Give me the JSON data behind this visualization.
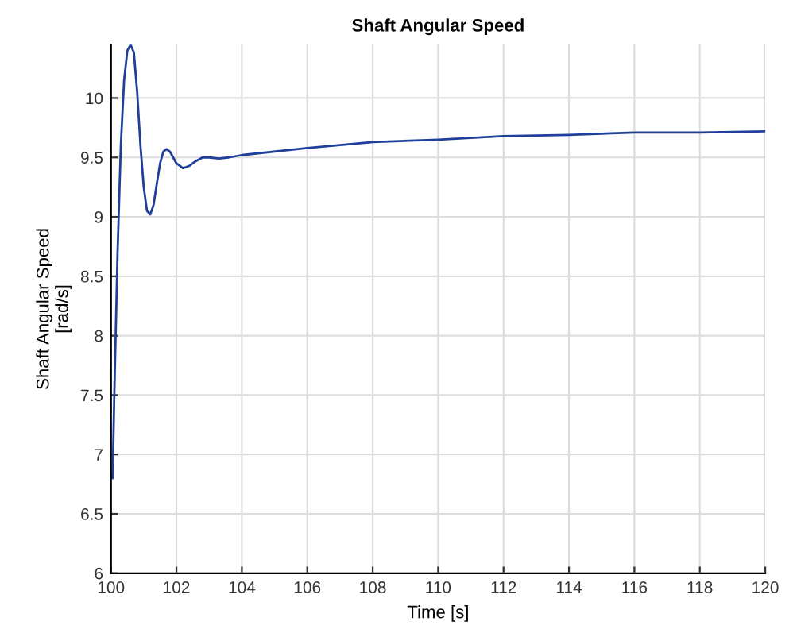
{
  "chart_data": {
    "type": "line",
    "title": "Shaft Angular Speed",
    "xlabel": "Time [s]",
    "ylabel": "Shaft Angular Speed\n[rad/s]",
    "x": [
      100.0,
      100.05,
      100.1,
      100.2,
      100.3,
      100.4,
      100.5,
      100.6,
      100.7,
      100.8,
      100.9,
      101.0,
      101.1,
      101.2,
      101.3,
      101.4,
      101.5,
      101.6,
      101.7,
      101.8,
      101.9,
      102.0,
      102.2,
      102.4,
      102.6,
      102.8,
      103.0,
      103.3,
      103.6,
      104,
      106,
      108,
      110,
      112,
      114,
      116,
      118,
      120
    ],
    "series": [
      {
        "color": "#1f3f9a",
        "values": [
          6.85,
          6.8,
          7.5,
          8.7,
          9.6,
          10.15,
          10.4,
          10.45,
          10.38,
          10.05,
          9.6,
          9.25,
          9.05,
          9.02,
          9.1,
          9.28,
          9.45,
          9.55,
          9.57,
          9.55,
          9.5,
          9.45,
          9.41,
          9.43,
          9.47,
          9.5,
          9.5,
          9.49,
          9.5,
          9.52,
          9.58,
          9.63,
          9.65,
          9.68,
          9.69,
          9.71,
          9.71,
          9.72
        ]
      }
    ],
    "xlim": [
      100,
      120
    ],
    "xticks": [
      100,
      102,
      104,
      106,
      108,
      110,
      112,
      114,
      116,
      118,
      120
    ],
    "ylim": [
      6,
      10.45
    ],
    "yticks": [
      6,
      6.5,
      7,
      7.5,
      8,
      8.5,
      9,
      9.5,
      10
    ],
    "grid": true,
    "legend": false
  }
}
